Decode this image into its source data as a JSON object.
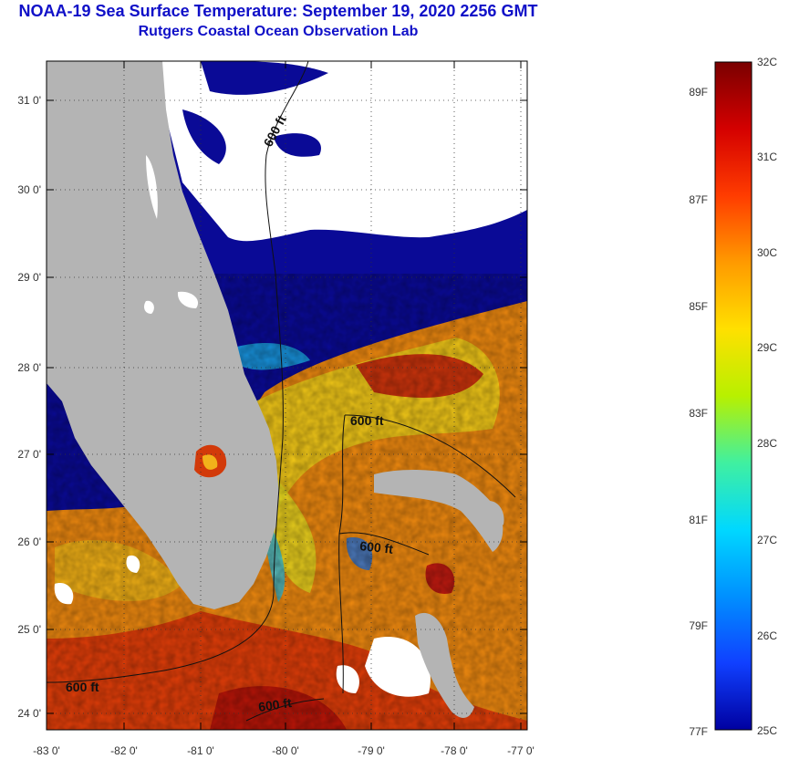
{
  "title": {
    "line1": "NOAA-19 Sea Surface Temperature:  September 19, 2020 2256 GMT",
    "line2": "Rutgers Coastal Ocean Observation Lab"
  },
  "map": {
    "lat_ticks": [
      "31 0'",
      "30 0'",
      "29 0'",
      "28 0'",
      "27 0'",
      "26 0'",
      "25 0'",
      "24 0'"
    ],
    "lon_ticks": [
      "-83 0'",
      "-82 0'",
      "-81 0'",
      "-80 0'",
      "-79 0'",
      "-78 0'",
      "-77 0'"
    ],
    "contour_labels": [
      "600 ft",
      "600 ft",
      "600 ft",
      "600 ft",
      "600 ft"
    ]
  },
  "colorbar": {
    "celsius": [
      "32C",
      "31C",
      "30C",
      "29C",
      "28C",
      "27C",
      "26C",
      "25C"
    ],
    "fahrenheit": [
      "89F",
      "87F",
      "85F",
      "83F",
      "81F",
      "79F",
      "77F"
    ],
    "colors": [
      "#7a0000",
      "#d40000",
      "#ff3c00",
      "#ff9a00",
      "#ffe000",
      "#b8f000",
      "#40f0a0",
      "#00d8ff",
      "#0090ff",
      "#1040ff",
      "#0000a0"
    ]
  },
  "colors": {
    "title": "#1010c8",
    "land": "#b4b4b4",
    "cloud": "#ffffff",
    "cold_water": "#0a0a96",
    "warm_water": "#f07010"
  }
}
